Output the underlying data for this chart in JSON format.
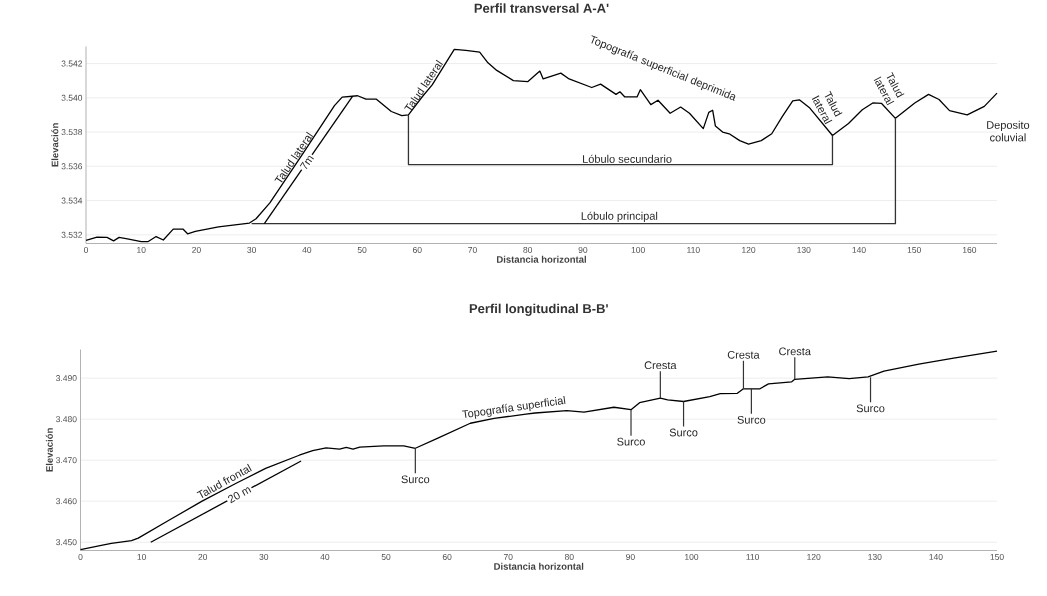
{
  "chart_data": [
    {
      "type": "line",
      "title": "Perfil transversal A-A'",
      "xlabel": "Distancia horizontal",
      "ylabel": "Elevación",
      "xlim": [
        0,
        165
      ],
      "ylim": [
        3531.5,
        3543
      ],
      "xticks": [
        0,
        10,
        20,
        30,
        40,
        50,
        60,
        70,
        80,
        90,
        100,
        110,
        120,
        130,
        140,
        150,
        160
      ],
      "yticks": [
        {
          "value": 3532,
          "label": "3.532"
        },
        {
          "value": 3534,
          "label": "3.534"
        },
        {
          "value": 3536,
          "label": "3.536"
        },
        {
          "value": 3538,
          "label": "3.538"
        },
        {
          "value": 3540,
          "label": "3.540"
        },
        {
          "value": 3542,
          "label": "3.542"
        }
      ],
      "grid": "y",
      "series": [
        {
          "color": "#000000",
          "x": [
            0,
            2,
            3.8,
            5,
            6,
            7.5,
            10,
            11.2,
            12.7,
            14,
            15.8,
            17.6,
            18.4,
            19.8,
            24,
            29.6,
            30.8,
            33.3,
            39.4,
            45,
            46.4,
            49.2,
            50.7,
            52.6,
            55.3,
            57.2,
            58.4,
            60.9,
            62.7,
            66.7,
            68.8,
            71.3,
            72.8,
            74.4,
            77.4,
            80,
            82.2,
            82.8,
            86,
            87.5,
            91.6,
            93.2,
            96,
            96.7,
            97.6,
            99.8,
            100.4,
            102.3,
            103.6,
            105.8,
            107.7,
            109.3,
            111.8,
            112.8,
            113.5,
            114,
            115.3,
            116.5,
            118.4,
            120,
            122.3,
            124.2,
            126.1,
            128,
            129.2,
            131.1,
            135.2,
            138.1,
            140.6,
            142.5,
            144.1,
            146.6,
            150.1,
            152.6,
            154.5,
            156.4,
            159.6,
            162.7,
            165
          ],
          "values": [
            3531.67,
            3531.87,
            3531.85,
            3531.65,
            3531.85,
            3531.77,
            3531.6,
            3531.6,
            3531.9,
            3531.7,
            3532.33,
            3532.33,
            3532.06,
            3532.2,
            3532.46,
            3532.69,
            3532.94,
            3533.87,
            3536.8,
            3539.54,
            3540.04,
            3540.12,
            3539.92,
            3539.92,
            3539.2,
            3538.96,
            3539.0,
            3540.06,
            3540.75,
            3542.83,
            3542.77,
            3542.67,
            3542.04,
            3541.6,
            3541.0,
            3540.94,
            3541.56,
            3541.1,
            3541.44,
            3541.1,
            3540.6,
            3540.8,
            3540.2,
            3540.35,
            3540.05,
            3540.05,
            3540.47,
            3539.6,
            3539.86,
            3539.1,
            3539.46,
            3539.1,
            3538.2,
            3539.15,
            3539.27,
            3538.35,
            3538.0,
            3537.9,
            3537.5,
            3537.3,
            3537.5,
            3537.9,
            3538.9,
            3539.82,
            3539.88,
            3539.4,
            3537.8,
            3538.5,
            3539.3,
            3539.7,
            3539.67,
            3538.8,
            3539.7,
            3540.2,
            3539.9,
            3539.25,
            3539.0,
            3539.5,
            3540.27
          ]
        },
        {
          "color": "#333333",
          "x": [
            58.4,
            58.4,
            135.2,
            135.2
          ],
          "values": [
            3539.0,
            3536.1,
            3536.1,
            3537.8
          ]
        },
        {
          "color": "#333333",
          "x": [
            30,
            146.6,
            146.6
          ],
          "values": [
            3532.65,
            3532.65,
            3538.8
          ]
        },
        {
          "color": "#000000",
          "x": [
            32.3,
            48.3
          ],
          "values": [
            3532.65,
            3540.1
          ]
        }
      ],
      "annotations": [
        {
          "text": "Talud lateral",
          "x": 38.5,
          "y": 3536.3
        },
        {
          "text": "7m",
          "x": 40,
          "y": 3536.24
        },
        {
          "text": "Talud lateral",
          "x": 62,
          "y": 3540.5
        },
        "Topografía superficial deprimida",
        "Talud lateral",
        "Talud lateral",
        "Deposito coluvial",
        {
          "text": "Lóbulo secundario",
          "x": 98,
          "y": 3536.1
        },
        {
          "text": "Lóbulo principal",
          "x": 96.6,
          "y": 3532.65
        }
      ]
    },
    {
      "type": "line",
      "title": "Perfil longitudinal B-B'",
      "xlabel": "Distancia horizontal",
      "ylabel": "Elevación",
      "xlim": [
        0,
        150
      ],
      "ylim": [
        3448,
        3497
      ],
      "xticks": [
        0,
        10,
        20,
        30,
        40,
        50,
        60,
        70,
        80,
        90,
        100,
        110,
        120,
        130,
        140,
        150
      ],
      "yticks": [
        {
          "value": 3450,
          "label": "3.450"
        },
        {
          "value": 3460,
          "label": "3.460"
        },
        {
          "value": 3470,
          "label": "3.470"
        },
        {
          "value": 3480,
          "label": "3.480"
        },
        {
          "value": 3490,
          "label": "3.490"
        }
      ],
      "grid": "y",
      "series": [
        {
          "color": "#000000",
          "x": [
            0,
            3.4,
            5.05,
            8.35,
            9.45,
            14.4,
            19.9,
            25.4,
            30.3,
            35.8,
            38,
            40.2,
            42.4,
            43.5,
            44.6,
            45.7,
            49.6,
            52.9,
            54.8,
            58.4,
            63.8,
            67.7,
            72.9,
            74.4,
            79.6,
            82.4,
            87.3,
            90.1,
            91.5,
            94.9,
            96.1,
            98.7,
            103,
            104.7,
            107.5,
            108.5,
            111.2,
            112.6,
            116.4,
            116.9,
            122.3,
            125.8,
            128.9,
            131.5,
            137.2,
            142.9,
            150
          ],
          "values": [
            3448.2,
            3449.2,
            3449.7,
            3450.4,
            3451,
            3455.3,
            3460,
            3464.3,
            3468,
            3471.2,
            3472.3,
            3473,
            3472.7,
            3473.1,
            3472.7,
            3473.2,
            3473.5,
            3473.5,
            3472.9,
            3475.3,
            3479,
            3480.2,
            3481.2,
            3481.5,
            3482.1,
            3481.7,
            3482.9,
            3482.3,
            3484,
            3485.1,
            3484.7,
            3484.3,
            3485.5,
            3486.2,
            3486.3,
            3487.4,
            3487.4,
            3488.6,
            3489.1,
            3489.7,
            3490.3,
            3489.9,
            3490.3,
            3491.7,
            3493.4,
            3494.9,
            3496.6
          ]
        },
        {
          "color": "#000000",
          "x": [
            11.5,
            36.1
          ],
          "values": [
            3450,
            3469.8
          ]
        }
      ],
      "annotations": [
        {
          "text": "Talud frontal",
          "x": 24,
          "y": 3463.6
        },
        {
          "text": "20 m",
          "x": 26,
          "y": 3461.7
        },
        {
          "text": "Surco",
          "x": 54.8,
          "y": 3472.9
        },
        "Topografía superficial",
        {
          "text": "Surco",
          "x": 90.1,
          "y": 3482.3
        },
        {
          "text": "Cresta",
          "x": 94.9,
          "y": 3485.1
        },
        {
          "text": "Surco",
          "x": 98.7,
          "y": 3484.3
        },
        {
          "text": "Cresta",
          "x": 108.5,
          "y": 3487.4
        },
        {
          "text": "Surco",
          "x": 109.8,
          "y": 3487.4
        },
        {
          "text": "Cresta",
          "x": 116.9,
          "y": 3489.7
        },
        {
          "text": "Surco",
          "x": 129.3,
          "y": 3490.2
        }
      ]
    }
  ]
}
